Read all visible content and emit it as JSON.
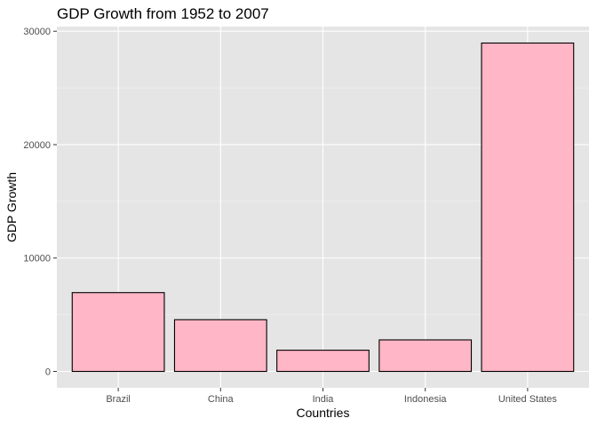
{
  "chart_data": {
    "type": "bar",
    "title": "GDP Growth from 1952 to 2007",
    "xlabel": "Countries",
    "ylabel": "GDP Growth",
    "categories": [
      "Brazil",
      "China",
      "India",
      "Indonesia",
      "United States"
    ],
    "values": [
      6950,
      4560,
      1870,
      2780,
      28960
    ],
    "ylim": [
      -1448,
      30408
    ],
    "yticks": [
      0,
      10000,
      20000,
      30000
    ],
    "ytick_labels": [
      "0",
      "10000",
      "20000",
      "30000"
    ],
    "grid": true,
    "legend": "none",
    "colors": {
      "bar_fill": "#FFB6C6",
      "bar_stroke": "#000000",
      "panel_background": "#E5E5E5",
      "grid_major": "#FFFFFF",
      "grid_minor": "#F2F2F2",
      "tick_label": "#4D4D4D",
      "text": "#000000"
    }
  }
}
